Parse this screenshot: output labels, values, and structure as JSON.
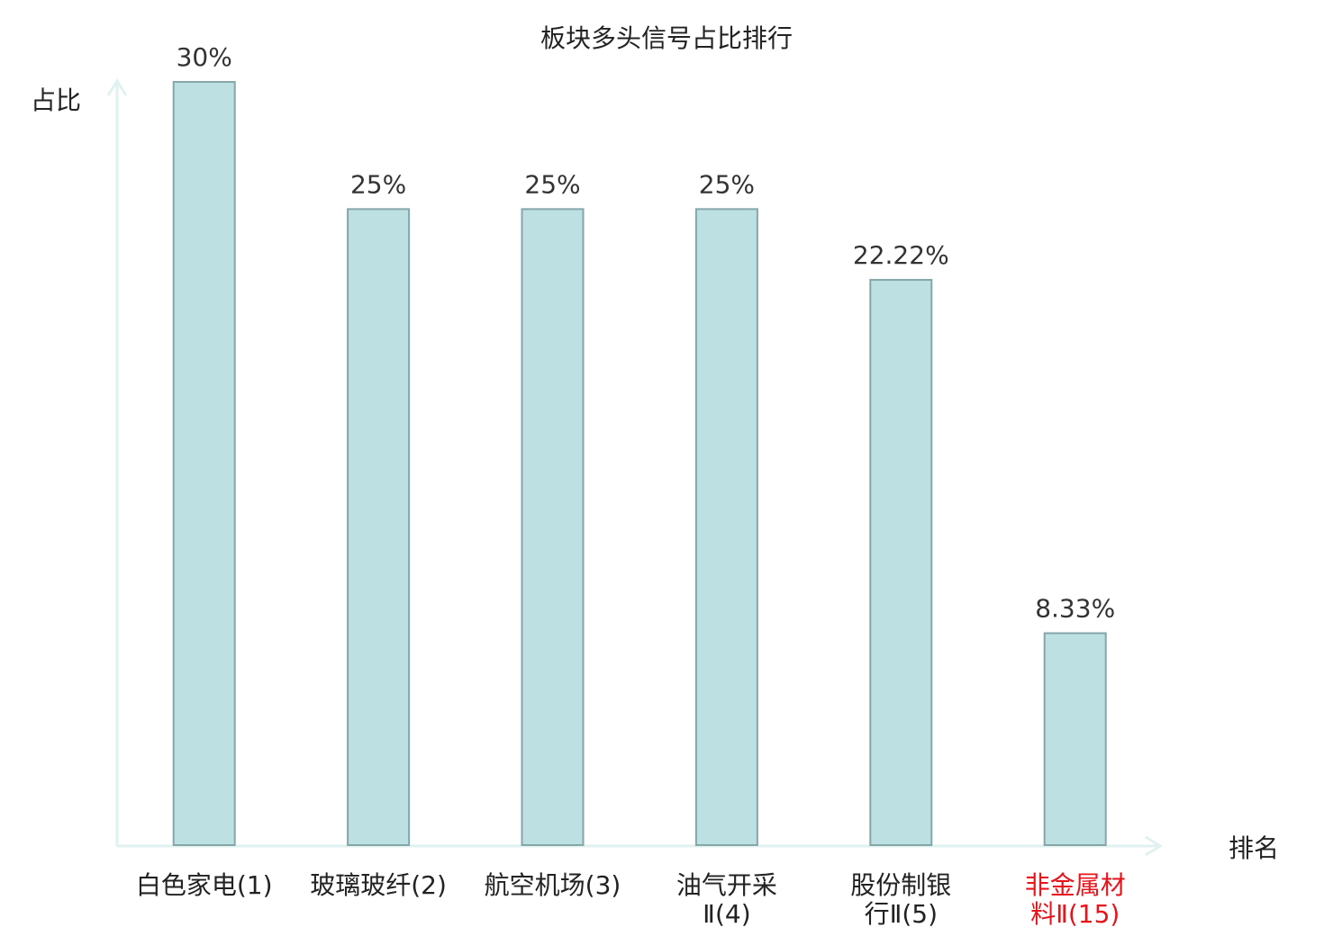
{
  "chart_data": {
    "type": "bar",
    "title": "板块多头信号占比排行",
    "y_label": "占比",
    "x_label": "排名",
    "categories": [
      "白色家电(1)",
      "玻璃玻纤(2)",
      "航空机场(3)",
      "油气开采Ⅱ(4)",
      "股份制银行Ⅱ(5)",
      "非金属材料Ⅱ(15)"
    ],
    "values": [
      30,
      25,
      25,
      25,
      22.22,
      8.33
    ],
    "value_labels": [
      "30%",
      "25%",
      "25%",
      "25%",
      "22.22%",
      "8.33%"
    ],
    "label_colors": [
      "#222222",
      "#222222",
      "#222222",
      "#222222",
      "#222222",
      "#e8141b"
    ],
    "color": "#bde0e2",
    "edge_color": "#86a6a8",
    "ylim": [
      0,
      30
    ]
  }
}
